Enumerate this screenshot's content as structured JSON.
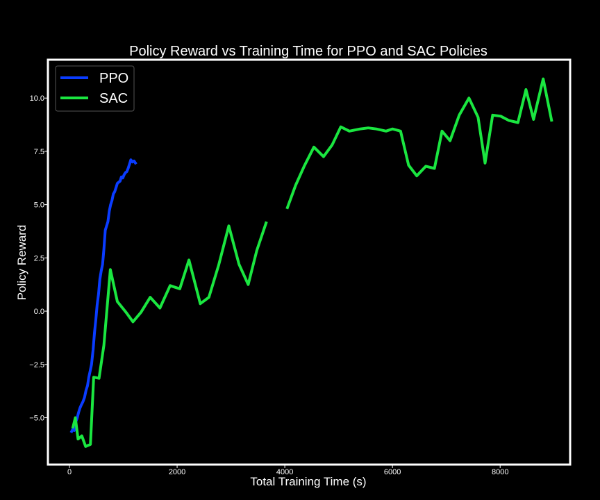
{
  "chart_data": {
    "type": "line",
    "title": "Policy Reward vs Training Time for PPO and SAC Policies",
    "xlabel": "Total Training Time (s)",
    "ylabel": "Policy Reward",
    "xlim": [
      -400,
      9300
    ],
    "ylim": [
      -7.2,
      11.8
    ],
    "xticks": [
      0,
      2000,
      4000,
      6000,
      8000
    ],
    "xtick_labels": [
      "0",
      "2000",
      "4000",
      "6000",
      "8000"
    ],
    "yticks": [
      -5.0,
      -2.5,
      0.0,
      2.5,
      5.0,
      7.5,
      10.0
    ],
    "ytick_labels": [
      "−5.0",
      "−2.5",
      "0.0",
      "2.5",
      "5.0",
      "7.5",
      "10.0"
    ],
    "grid": false,
    "legend_position": "top-left",
    "background_color": "#000000",
    "frame_color": "#ffffff",
    "series": [
      {
        "name": "PPO",
        "color": "#0a3cff",
        "points": [
          [
            30,
            -5.7
          ],
          [
            60,
            -5.55
          ],
          [
            90,
            -5.6
          ],
          [
            115,
            -5.2
          ],
          [
            140,
            -5.05
          ],
          [
            170,
            -4.75
          ],
          [
            195,
            -4.55
          ],
          [
            220,
            -4.4
          ],
          [
            250,
            -4.25
          ],
          [
            280,
            -4.05
          ],
          [
            310,
            -3.7
          ],
          [
            335,
            -3.5
          ],
          [
            360,
            -3.1
          ],
          [
            385,
            -2.8
          ],
          [
            410,
            -2.5
          ],
          [
            440,
            -1.8
          ],
          [
            465,
            -1.0
          ],
          [
            490,
            -0.4
          ],
          [
            515,
            0.3
          ],
          [
            540,
            0.8
          ],
          [
            565,
            1.5
          ],
          [
            590,
            1.9
          ],
          [
            615,
            2.2
          ],
          [
            640,
            2.9
          ],
          [
            665,
            3.8
          ],
          [
            690,
            4.0
          ],
          [
            715,
            4.2
          ],
          [
            740,
            4.7
          ],
          [
            765,
            5.0
          ],
          [
            790,
            5.2
          ],
          [
            815,
            5.5
          ],
          [
            840,
            5.6
          ],
          [
            865,
            5.8
          ],
          [
            890,
            6.0
          ],
          [
            915,
            6.05
          ],
          [
            940,
            6.1
          ],
          [
            965,
            6.3
          ],
          [
            990,
            6.25
          ],
          [
            1015,
            6.4
          ],
          [
            1040,
            6.5
          ],
          [
            1065,
            6.55
          ],
          [
            1090,
            6.7
          ],
          [
            1115,
            6.9
          ],
          [
            1140,
            7.1
          ],
          [
            1170,
            7.0
          ],
          [
            1200,
            7.05
          ],
          [
            1240,
            6.9
          ]
        ]
      },
      {
        "name": "SAC",
        "color": "#1ae640",
        "points": [
          [
            60,
            -5.5
          ],
          [
            110,
            -5.0
          ],
          [
            160,
            -6.0
          ],
          [
            230,
            -5.85
          ],
          [
            300,
            -6.35
          ],
          [
            390,
            -6.25
          ],
          [
            450,
            -3.1
          ],
          [
            550,
            -3.15
          ],
          [
            640,
            -1.6
          ],
          [
            760,
            1.95
          ],
          [
            890,
            0.45
          ],
          [
            1050,
            -0.05
          ],
          [
            1180,
            -0.5
          ],
          [
            1330,
            -0.05
          ],
          [
            1500,
            0.65
          ],
          [
            1680,
            0.15
          ],
          [
            1870,
            1.2
          ],
          [
            2050,
            1.05
          ],
          [
            2220,
            2.4
          ],
          [
            2430,
            0.35
          ],
          [
            2590,
            0.65
          ],
          [
            2770,
            2.15
          ],
          [
            2960,
            4.0
          ],
          [
            3150,
            2.2
          ],
          [
            3320,
            1.25
          ],
          [
            3480,
            2.85
          ],
          [
            3660,
            4.2
          ],
          [
            null,
            null
          ],
          [
            4040,
            4.8
          ],
          [
            4200,
            5.9
          ],
          [
            4360,
            6.8
          ],
          [
            4540,
            7.7
          ],
          [
            4720,
            7.25
          ],
          [
            4880,
            7.8
          ],
          [
            5040,
            8.65
          ],
          [
            5200,
            8.45
          ],
          [
            5400,
            8.55
          ],
          [
            5550,
            8.6
          ],
          [
            5700,
            8.55
          ],
          [
            5880,
            8.45
          ],
          [
            6000,
            8.55
          ],
          [
            6150,
            8.45
          ],
          [
            6300,
            6.85
          ],
          [
            6450,
            6.35
          ],
          [
            6620,
            6.8
          ],
          [
            6780,
            6.7
          ],
          [
            6920,
            8.45
          ],
          [
            7070,
            8.0
          ],
          [
            7240,
            9.2
          ],
          [
            7420,
            10.0
          ],
          [
            7590,
            9.1
          ],
          [
            7720,
            6.95
          ],
          [
            7860,
            9.2
          ],
          [
            8010,
            9.15
          ],
          [
            8160,
            8.95
          ],
          [
            8330,
            8.85
          ],
          [
            8480,
            10.4
          ],
          [
            8620,
            9.0
          ],
          [
            8800,
            10.9
          ],
          [
            8960,
            8.9
          ]
        ]
      }
    ]
  }
}
